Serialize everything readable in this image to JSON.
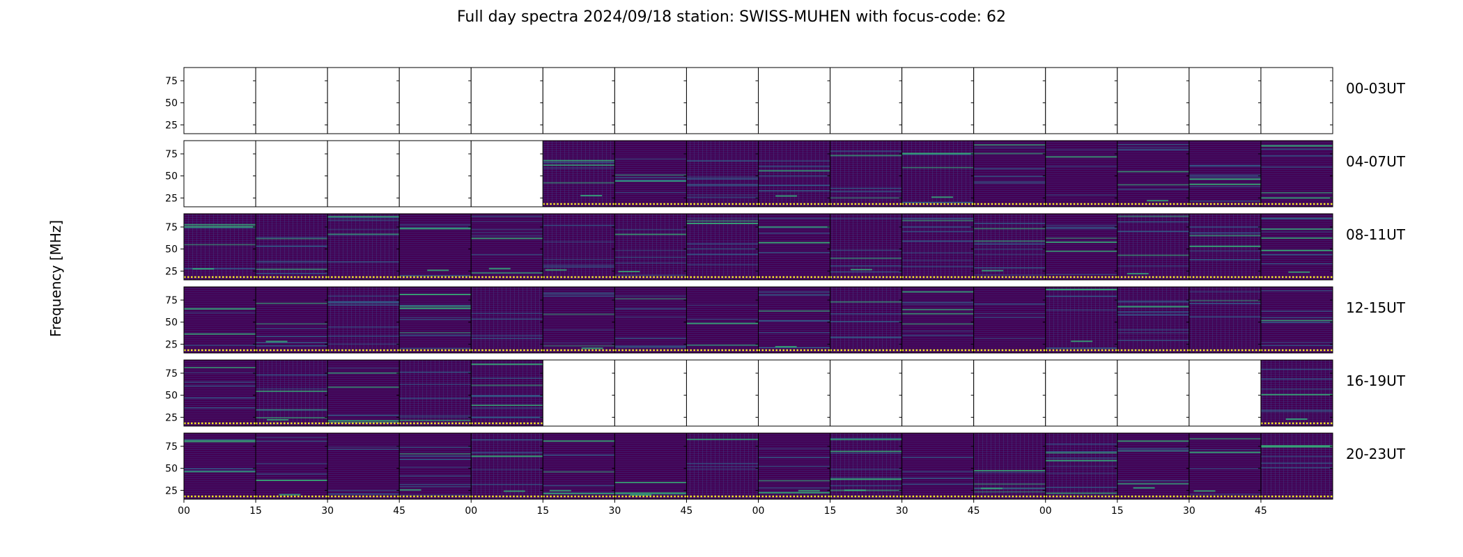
{
  "chart_data": {
    "type": "heatmap",
    "title": "Full day spectra 2024/09/18 station: SWISS-MUHEN with focus-code: 62",
    "ylabel": "Frequency [MHz]",
    "xlabel": "",
    "y_ticks": [
      "75",
      "50",
      "25"
    ],
    "x_tick_labels": [
      "00",
      "15",
      "30",
      "45",
      "00",
      "15",
      "30",
      "45",
      "00",
      "15",
      "30",
      "45",
      "00",
      "15",
      "30",
      "45"
    ],
    "colormap": "viridis",
    "rows": [
      {
        "label": "00-03UT",
        "panels_with_data": [
          false,
          false,
          false,
          false,
          false,
          false,
          false,
          false,
          false,
          false,
          false,
          false,
          false,
          false,
          false,
          false
        ]
      },
      {
        "label": "04-07UT",
        "panels_with_data": [
          false,
          false,
          false,
          false,
          false,
          true,
          true,
          true,
          true,
          true,
          true,
          true,
          true,
          true,
          true,
          true
        ]
      },
      {
        "label": "08-11UT",
        "panels_with_data": [
          true,
          true,
          true,
          true,
          true,
          true,
          true,
          true,
          true,
          true,
          true,
          true,
          true,
          true,
          true,
          true
        ]
      },
      {
        "label": "12-15UT",
        "panels_with_data": [
          true,
          true,
          true,
          true,
          true,
          true,
          true,
          true,
          true,
          true,
          true,
          true,
          true,
          true,
          true,
          true
        ]
      },
      {
        "label": "16-19UT",
        "panels_with_data": [
          true,
          true,
          true,
          true,
          true,
          false,
          false,
          false,
          false,
          false,
          false,
          false,
          false,
          false,
          false,
          true
        ]
      },
      {
        "label": "20-23UT",
        "panels_with_data": [
          true,
          true,
          true,
          true,
          true,
          true,
          true,
          true,
          true,
          true,
          true,
          true,
          true,
          true,
          true,
          true
        ]
      }
    ],
    "colors": {
      "background": "#440154",
      "band": "#31688e",
      "bright": "#35b779",
      "peak": "#fde725",
      "frame": "#000000"
    }
  }
}
